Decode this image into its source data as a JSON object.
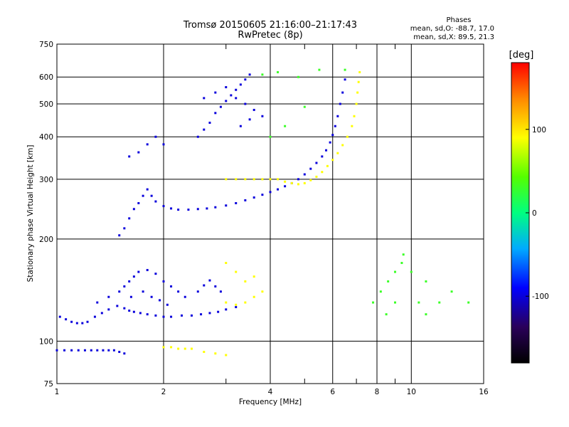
{
  "chart_data": {
    "type": "scatter",
    "title": "Tromsø 20150605 21:16:00–21:17:43",
    "subtitle": "RwPretec (8p)",
    "xlabel": "Frequency [MHz]",
    "ylabel": "Stationary phase Virtual Height [km]",
    "x_scale": "log",
    "y_scale": "log",
    "xlim": [
      1,
      16
    ],
    "ylim": [
      75,
      750
    ],
    "x_ticks": [
      1,
      2,
      4,
      6,
      8,
      10,
      16
    ],
    "x_tick_labels": [
      "1",
      "2",
      "4",
      "6",
      "8",
      "10",
      "16"
    ],
    "x_minor_ticks": [
      3,
      5,
      7,
      9
    ],
    "y_ticks": [
      75,
      100,
      200,
      300,
      400,
      500,
      600,
      750
    ],
    "y_tick_labels": [
      "75",
      "100",
      "200",
      "300",
      "400",
      "500",
      "600",
      "750"
    ],
    "grid": true,
    "phase_stats": {
      "heading": "Phases",
      "o_mode": "mean, sd,O: -88.7, 17.0",
      "x_mode": "mean, sd,X:  89.5, 21.3"
    },
    "colorbar": {
      "label": "[deg]",
      "range": [
        -180,
        180
      ],
      "ticks": [
        100,
        0,
        -100
      ],
      "tick_labels": [
        "100",
        "0",
        "-100"
      ]
    },
    "series": [
      {
        "points": [
          [
            1.0,
            94
          ],
          [
            1.05,
            94
          ],
          [
            1.1,
            94
          ],
          [
            1.15,
            94
          ],
          [
            1.2,
            94
          ],
          [
            1.25,
            94
          ],
          [
            1.3,
            94
          ],
          [
            1.35,
            94
          ],
          [
            1.4,
            94
          ],
          [
            1.45,
            94
          ],
          [
            1.5,
            93
          ],
          [
            1.55,
            92
          ],
          [
            1.02,
            118
          ],
          [
            1.06,
            116
          ],
          [
            1.1,
            114
          ],
          [
            1.14,
            113
          ],
          [
            1.18,
            113
          ],
          [
            1.22,
            114
          ],
          [
            1.28,
            118
          ],
          [
            1.34,
            121
          ],
          [
            1.4,
            124
          ],
          [
            1.48,
            127
          ],
          [
            1.55,
            125
          ],
          [
            1.6,
            123
          ],
          [
            1.65,
            122
          ],
          [
            1.72,
            121
          ],
          [
            1.8,
            120
          ],
          [
            1.9,
            119
          ],
          [
            2.0,
            118
          ],
          [
            2.1,
            118
          ],
          [
            2.25,
            119
          ],
          [
            2.4,
            119
          ],
          [
            2.55,
            120
          ],
          [
            2.7,
            121
          ],
          [
            2.85,
            122
          ],
          [
            3.0,
            124
          ],
          [
            3.2,
            126
          ],
          [
            1.3,
            130
          ],
          [
            1.4,
            135
          ],
          [
            1.5,
            140
          ],
          [
            1.55,
            145
          ],
          [
            1.6,
            150
          ],
          [
            1.65,
            155
          ],
          [
            1.7,
            160
          ],
          [
            1.8,
            162
          ],
          [
            1.9,
            158
          ],
          [
            2.0,
            150
          ],
          [
            2.1,
            145
          ],
          [
            2.2,
            140
          ],
          [
            1.62,
            135
          ],
          [
            1.75,
            140
          ],
          [
            1.85,
            135
          ],
          [
            1.95,
            132
          ],
          [
            2.05,
            128
          ],
          [
            2.3,
            135
          ],
          [
            2.5,
            140
          ],
          [
            2.6,
            146
          ],
          [
            2.7,
            151
          ],
          [
            2.8,
            145
          ],
          [
            2.9,
            140
          ],
          [
            1.5,
            205
          ],
          [
            1.55,
            215
          ],
          [
            1.6,
            230
          ],
          [
            1.65,
            245
          ],
          [
            1.7,
            255
          ],
          [
            1.75,
            268
          ],
          [
            1.8,
            280
          ],
          [
            1.85,
            268
          ],
          [
            1.9,
            258
          ],
          [
            2.0,
            250
          ],
          [
            2.1,
            246
          ],
          [
            2.2,
            244
          ],
          [
            2.35,
            244
          ],
          [
            2.5,
            245
          ],
          [
            2.65,
            246
          ],
          [
            2.8,
            248
          ],
          [
            3.0,
            251
          ],
          [
            3.2,
            255
          ],
          [
            3.4,
            260
          ],
          [
            3.6,
            265
          ],
          [
            3.8,
            270
          ],
          [
            4.0,
            275
          ],
          [
            4.2,
            280
          ],
          [
            4.4,
            286
          ],
          [
            4.6,
            292
          ],
          [
            4.8,
            300
          ],
          [
            5.0,
            310
          ],
          [
            5.2,
            322
          ],
          [
            5.4,
            335
          ],
          [
            5.6,
            350
          ],
          [
            5.75,
            365
          ],
          [
            5.9,
            385
          ],
          [
            6.0,
            405
          ],
          [
            6.1,
            430
          ],
          [
            6.2,
            460
          ],
          [
            6.3,
            500
          ],
          [
            6.4,
            540
          ],
          [
            6.5,
            590
          ],
          [
            1.6,
            350
          ],
          [
            1.7,
            360
          ],
          [
            1.8,
            380
          ],
          [
            1.9,
            400
          ],
          [
            2.0,
            380
          ],
          [
            2.5,
            400
          ],
          [
            2.6,
            420
          ],
          [
            2.7,
            440
          ],
          [
            2.8,
            470
          ],
          [
            2.9,
            490
          ],
          [
            3.0,
            510
          ],
          [
            3.1,
            530
          ],
          [
            3.2,
            550
          ],
          [
            3.3,
            570
          ],
          [
            3.4,
            590
          ],
          [
            3.5,
            610
          ],
          [
            2.6,
            520
          ],
          [
            2.8,
            540
          ],
          [
            3.0,
            560
          ],
          [
            3.2,
            520
          ],
          [
            3.4,
            500
          ],
          [
            3.6,
            480
          ],
          [
            3.8,
            460
          ],
          [
            3.3,
            430
          ],
          [
            3.5,
            450
          ]
        ],
        "phase_deg": -100
      },
      {
        "points": [
          [
            3.0,
            300
          ],
          [
            3.2,
            300
          ],
          [
            3.4,
            300
          ],
          [
            3.6,
            300
          ],
          [
            3.8,
            300
          ],
          [
            4.0,
            300
          ],
          [
            4.2,
            300
          ],
          [
            4.4,
            295
          ],
          [
            4.6,
            292
          ],
          [
            4.8,
            290
          ],
          [
            5.0,
            292
          ],
          [
            5.2,
            298
          ],
          [
            5.4,
            305
          ],
          [
            5.6,
            315
          ],
          [
            5.8,
            328
          ],
          [
            6.0,
            342
          ],
          [
            6.2,
            358
          ],
          [
            6.4,
            378
          ],
          [
            6.6,
            400
          ],
          [
            6.8,
            430
          ],
          [
            6.9,
            460
          ],
          [
            7.0,
            500
          ],
          [
            7.05,
            540
          ],
          [
            7.1,
            580
          ],
          [
            7.15,
            620
          ],
          [
            3.0,
            130
          ],
          [
            3.2,
            128
          ],
          [
            3.4,
            130
          ],
          [
            3.6,
            135
          ],
          [
            3.8,
            140
          ],
          [
            3.4,
            150
          ],
          [
            3.6,
            155
          ],
          [
            3.2,
            160
          ],
          [
            3.0,
            170
          ],
          [
            2.0,
            96
          ],
          [
            2.1,
            96
          ],
          [
            2.2,
            95
          ],
          [
            2.3,
            95
          ],
          [
            2.4,
            95
          ],
          [
            2.6,
            93
          ],
          [
            2.8,
            92
          ],
          [
            3.0,
            91
          ]
        ],
        "phase_deg": 90
      },
      {
        "points": [
          [
            5.0,
            490
          ],
          [
            5.5,
            630
          ],
          [
            6.5,
            630
          ],
          [
            4.2,
            620
          ],
          [
            4.8,
            600
          ],
          [
            3.8,
            610
          ],
          [
            4.4,
            430
          ],
          [
            4.0,
            400
          ],
          [
            7.8,
            130
          ],
          [
            8.2,
            140
          ],
          [
            8.6,
            150
          ],
          [
            9.0,
            160
          ],
          [
            9.4,
            170
          ],
          [
            10.5,
            130
          ],
          [
            11.0,
            150
          ],
          [
            12.0,
            130
          ],
          [
            13.0,
            140
          ],
          [
            14.5,
            130
          ],
          [
            9.0,
            130
          ],
          [
            9.5,
            180
          ],
          [
            10.0,
            160
          ],
          [
            11.0,
            120
          ],
          [
            8.5,
            120
          ]
        ],
        "phase_deg": 30
      }
    ]
  }
}
